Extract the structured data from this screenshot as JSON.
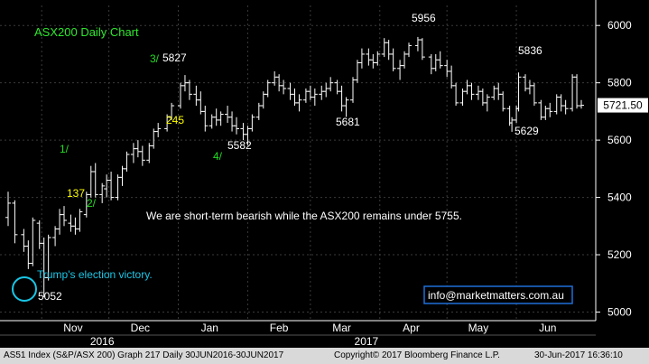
{
  "chart_data": {
    "type": "ohlc",
    "title": "ASX200 Daily Chart",
    "ylim": [
      4970,
      6070
    ],
    "y_ticks": [
      5000,
      5200,
      5400,
      5600,
      5800,
      6000
    ],
    "y_tick_labels": [
      "5000",
      "5200",
      "5400",
      "5600",
      "5800",
      "6000"
    ],
    "month_labels": [
      "Nov",
      "Dec",
      "Jan",
      "Feb",
      "Mar",
      "Apr",
      "May",
      "Jun"
    ],
    "year_labels": [
      "2016",
      "2017"
    ],
    "last_price": 5721.5,
    "last_price_label": "5721.50",
    "price_labels": [
      {
        "text": "5827",
        "date": "2017-01-04",
        "color": "#ffffff"
      },
      {
        "text": "5582",
        "date": "2017-02-01",
        "color": "#ffffff"
      },
      {
        "text": "5681",
        "date": "2017-03-17",
        "color": "#ffffff"
      },
      {
        "text": "5956",
        "date": "2017-04-03",
        "color": "#ffffff"
      },
      {
        "text": "5836",
        "date": "2017-05-30",
        "color": "#ffffff"
      },
      {
        "text": "5629",
        "date": "2017-05-30",
        "color": "#ffffff"
      },
      {
        "text": "5052",
        "date": "2016-11-02",
        "color": "#ffffff"
      },
      {
        "text": "245",
        "date": "2017-01-08",
        "color": "#ffff00"
      },
      {
        "text": "137",
        "date": "2016-11-25",
        "color": "#ffff00"
      }
    ],
    "wave_labels": [
      {
        "text": "1/",
        "color": "#22dd22"
      },
      {
        "text": "2/",
        "color": "#22dd22"
      },
      {
        "text": "3/",
        "color": "#22dd22"
      },
      {
        "text": "4/",
        "color": "#22dd22"
      }
    ],
    "annotations": {
      "election": "Trump's election victory.",
      "comment": "We are short-term bearish while the ASX200 remains under 5755.",
      "contact": "info@marketmatters.com.au"
    },
    "series": [
      {
        "points": [
          [
            "2016-10-17",
            5330,
            5420,
            5300,
            5380
          ],
          [
            "2016-10-20",
            5380,
            5390,
            5240,
            5270
          ],
          [
            "2016-10-24",
            5270,
            5290,
            5210,
            5230
          ],
          [
            "2016-10-26",
            5230,
            5250,
            5150,
            5170
          ],
          [
            "2016-10-28",
            5170,
            5330,
            5160,
            5320
          ],
          [
            "2016-10-31",
            5310,
            5320,
            5220,
            5240
          ],
          [
            "2016-11-02",
            5240,
            5260,
            5052,
            5120
          ],
          [
            "2016-11-04",
            5120,
            5270,
            5110,
            5260
          ],
          [
            "2016-11-07",
            5260,
            5300,
            5230,
            5290
          ],
          [
            "2016-11-09",
            5290,
            5360,
            5270,
            5340
          ],
          [
            "2016-11-11",
            5340,
            5370,
            5300,
            5320
          ],
          [
            "2016-11-14",
            5310,
            5340,
            5280,
            5300
          ],
          [
            "2016-11-16",
            5300,
            5330,
            5270,
            5290
          ],
          [
            "2016-11-18",
            5290,
            5360,
            5280,
            5350
          ],
          [
            "2016-11-21",
            5340,
            5420,
            5330,
            5410
          ],
          [
            "2016-11-23",
            5410,
            5510,
            5400,
            5490
          ],
          [
            "2016-11-25",
            5490,
            5520,
            5400,
            5410
          ],
          [
            "2016-11-28",
            5410,
            5450,
            5380,
            5440
          ],
          [
            "2016-11-30",
            5430,
            5480,
            5400,
            5460
          ],
          [
            "2016-12-02",
            5460,
            5490,
            5390,
            5400
          ],
          [
            "2016-12-05",
            5400,
            5480,
            5390,
            5470
          ],
          [
            "2016-12-07",
            5470,
            5510,
            5440,
            5500
          ],
          [
            "2016-12-09",
            5500,
            5560,
            5490,
            5550
          ],
          [
            "2016-12-12",
            5550,
            5590,
            5520,
            5570
          ],
          [
            "2016-12-14",
            5570,
            5600,
            5540,
            5560
          ],
          [
            "2016-12-16",
            5560,
            5580,
            5510,
            5530
          ],
          [
            "2016-12-19",
            5530,
            5590,
            5520,
            5580
          ],
          [
            "2016-12-21",
            5580,
            5640,
            5570,
            5630
          ],
          [
            "2016-12-23",
            5630,
            5660,
            5610,
            5640
          ],
          [
            "2016-12-27",
            5640,
            5690,
            5630,
            5680
          ],
          [
            "2016-12-29",
            5680,
            5730,
            5670,
            5720
          ],
          [
            "2017-01-02",
            5720,
            5800,
            5710,
            5790
          ],
          [
            "2017-01-04",
            5790,
            5827,
            5770,
            5800
          ],
          [
            "2017-01-06",
            5800,
            5810,
            5740,
            5760
          ],
          [
            "2017-01-09",
            5760,
            5790,
            5720,
            5740
          ],
          [
            "2017-01-11",
            5740,
            5770,
            5690,
            5700
          ],
          [
            "2017-01-13",
            5700,
            5720,
            5630,
            5650
          ],
          [
            "2017-01-16",
            5650,
            5690,
            5640,
            5680
          ],
          [
            "2017-01-18",
            5680,
            5710,
            5650,
            5670
          ],
          [
            "2017-01-20",
            5670,
            5700,
            5650,
            5690
          ],
          [
            "2017-01-23",
            5690,
            5720,
            5660,
            5680
          ],
          [
            "2017-01-25",
            5680,
            5700,
            5630,
            5650
          ],
          [
            "2017-01-27",
            5650,
            5680,
            5620,
            5640
          ],
          [
            "2017-01-30",
            5640,
            5660,
            5600,
            5620
          ],
          [
            "2017-02-01",
            5620,
            5650,
            5582,
            5640
          ],
          [
            "2017-02-03",
            5640,
            5690,
            5630,
            5680
          ],
          [
            "2017-02-06",
            5680,
            5730,
            5670,
            5720
          ],
          [
            "2017-02-08",
            5720,
            5770,
            5710,
            5760
          ],
          [
            "2017-02-10",
            5760,
            5810,
            5750,
            5800
          ],
          [
            "2017-02-13",
            5800,
            5840,
            5790,
            5820
          ],
          [
            "2017-02-15",
            5820,
            5830,
            5770,
            5790
          ],
          [
            "2017-02-17",
            5790,
            5810,
            5760,
            5780
          ],
          [
            "2017-02-20",
            5780,
            5800,
            5740,
            5760
          ],
          [
            "2017-02-22",
            5760,
            5780,
            5720,
            5730
          ],
          [
            "2017-02-24",
            5730,
            5760,
            5700,
            5740
          ],
          [
            "2017-02-27",
            5740,
            5780,
            5730,
            5770
          ],
          [
            "2017-03-01",
            5770,
            5790,
            5740,
            5750
          ],
          [
            "2017-03-03",
            5750,
            5780,
            5720,
            5760
          ],
          [
            "2017-03-06",
            5760,
            5790,
            5740,
            5770
          ],
          [
            "2017-03-08",
            5770,
            5800,
            5750,
            5780
          ],
          [
            "2017-03-10",
            5780,
            5820,
            5770,
            5800
          ],
          [
            "2017-03-13",
            5800,
            5810,
            5760,
            5770
          ],
          [
            "2017-03-15",
            5770,
            5790,
            5700,
            5720
          ],
          [
            "2017-03-17",
            5720,
            5750,
            5681,
            5740
          ],
          [
            "2017-03-20",
            5740,
            5820,
            5730,
            5810
          ],
          [
            "2017-03-22",
            5810,
            5880,
            5800,
            5870
          ],
          [
            "2017-03-24",
            5870,
            5920,
            5850,
            5900
          ],
          [
            "2017-03-27",
            5900,
            5920,
            5860,
            5880
          ],
          [
            "2017-03-29",
            5880,
            5900,
            5850,
            5870
          ],
          [
            "2017-03-31",
            5870,
            5910,
            5860,
            5900
          ],
          [
            "2017-04-03",
            5900,
            5956,
            5890,
            5940
          ],
          [
            "2017-04-05",
            5940,
            5950,
            5880,
            5900
          ],
          [
            "2017-04-07",
            5900,
            5920,
            5840,
            5850
          ],
          [
            "2017-04-10",
            5850,
            5880,
            5810,
            5860
          ],
          [
            "2017-04-12",
            5860,
            5910,
            5850,
            5900
          ],
          [
            "2017-04-14",
            5900,
            5940,
            5890,
            5930
          ],
          [
            "2017-04-18",
            5930,
            5960,
            5910,
            5950
          ],
          [
            "2017-04-20",
            5950,
            5956,
            5880,
            5890
          ],
          [
            "2017-04-24",
            5890,
            5900,
            5830,
            5850
          ],
          [
            "2017-04-26",
            5850,
            5900,
            5840,
            5880
          ],
          [
            "2017-04-28",
            5880,
            5910,
            5850,
            5860
          ],
          [
            "2017-05-01",
            5860,
            5880,
            5820,
            5840
          ],
          [
            "2017-05-03",
            5840,
            5860,
            5780,
            5790
          ],
          [
            "2017-05-05",
            5790,
            5800,
            5720,
            5730
          ],
          [
            "2017-05-08",
            5730,
            5780,
            5720,
            5770
          ],
          [
            "2017-05-10",
            5770,
            5810,
            5760,
            5790
          ],
          [
            "2017-05-12",
            5790,
            5800,
            5740,
            5760
          ],
          [
            "2017-05-15",
            5760,
            5790,
            5740,
            5770
          ],
          [
            "2017-05-17",
            5770,
            5780,
            5720,
            5730
          ],
          [
            "2017-05-19",
            5730,
            5760,
            5700,
            5750
          ],
          [
            "2017-05-22",
            5750,
            5790,
            5740,
            5780
          ],
          [
            "2017-05-24",
            5780,
            5800,
            5740,
            5760
          ],
          [
            "2017-05-26",
            5760,
            5770,
            5700,
            5710
          ],
          [
            "2017-05-29",
            5710,
            5720,
            5650,
            5660
          ],
          [
            "2017-05-30",
            5660,
            5680,
            5629,
            5670
          ],
          [
            "2017-06-01",
            5670,
            5720,
            5660,
            5710
          ],
          [
            "2017-06-02",
            5710,
            5836,
            5700,
            5820
          ],
          [
            "2017-06-05",
            5820,
            5830,
            5770,
            5780
          ],
          [
            "2017-06-07",
            5780,
            5810,
            5760,
            5790
          ],
          [
            "2017-06-09",
            5790,
            5800,
            5720,
            5730
          ],
          [
            "2017-06-12",
            5730,
            5740,
            5670,
            5680
          ],
          [
            "2017-06-14",
            5680,
            5720,
            5670,
            5710
          ],
          [
            "2017-06-16",
            5710,
            5730,
            5680,
            5700
          ],
          [
            "2017-06-19",
            5700,
            5760,
            5690,
            5750
          ],
          [
            "2017-06-21",
            5750,
            5760,
            5700,
            5720
          ],
          [
            "2017-06-23",
            5720,
            5740,
            5690,
            5710
          ],
          [
            "2017-06-26",
            5710,
            5830,
            5700,
            5820
          ],
          [
            "2017-06-28",
            5820,
            5830,
            5710,
            5720
          ],
          [
            "2017-06-30",
            5720,
            5740,
            5710,
            5721.5
          ]
        ]
      }
    ]
  },
  "footer": {
    "text": "AS51 Index (S&P/ASX 200) Graph 217  Daily 30JUN2016-30JUN2017",
    "copyright": "Copyright© 2017 Bloomberg Finance L.P.",
    "timestamp": "30-Jun-2017 16:36:10"
  }
}
